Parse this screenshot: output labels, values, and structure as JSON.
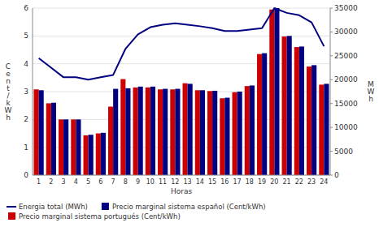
{
  "chart_data": {
    "type": "bar",
    "categories": [
      "1",
      "2",
      "3",
      "4",
      "5",
      "6",
      "7",
      "8",
      "9",
      "10",
      "11",
      "12",
      "13",
      "14",
      "15",
      "16",
      "17",
      "18",
      "19",
      "20",
      "21",
      "22",
      "23",
      "24"
    ],
    "series": [
      {
        "name": "Precio marginal sistema portugués (Cent/kWh)",
        "type": "bar",
        "color": "#cc0000",
        "values": [
          3.08,
          2.58,
          2.0,
          2.0,
          1.43,
          1.5,
          2.46,
          3.45,
          3.15,
          3.15,
          3.08,
          3.08,
          3.3,
          3.05,
          3.02,
          2.76,
          2.98,
          3.2,
          4.35,
          5.95,
          4.98,
          4.6,
          3.9,
          3.25
        ]
      },
      {
        "name": "Precio marginal sistema español (Cent/kWh)",
        "type": "bar",
        "color": "#000080",
        "values": [
          3.05,
          2.6,
          2.0,
          2.0,
          1.45,
          1.52,
          3.1,
          3.12,
          3.18,
          3.18,
          3.1,
          3.1,
          3.28,
          3.05,
          3.03,
          2.78,
          3.0,
          3.22,
          4.38,
          6.0,
          5.0,
          4.62,
          3.95,
          3.28
        ]
      },
      {
        "name": "Energia total (MWh)",
        "type": "line",
        "axis": "y2",
        "color": "#000080",
        "values": [
          24500,
          22500,
          20500,
          20500,
          20000,
          20500,
          21000,
          26500,
          29500,
          31000,
          31500,
          31800,
          31500,
          31200,
          30800,
          30200,
          30200,
          30500,
          30800,
          35000,
          34000,
          33500,
          32000,
          27000
        ]
      }
    ],
    "x_label": "Horas",
    "y_label": "C\ne\nn\nt\n/\nk\nW\nh",
    "y2_label": "M\nW\nh",
    "ylim": [
      0,
      6
    ],
    "yticks": [
      0,
      1,
      2,
      3,
      4,
      5,
      6
    ],
    "y2lim": [
      0,
      35000
    ],
    "y2ticks": [
      0,
      5000,
      10000,
      15000,
      20000,
      25000,
      30000,
      35000
    ],
    "grid": true,
    "legend": "bottom"
  }
}
